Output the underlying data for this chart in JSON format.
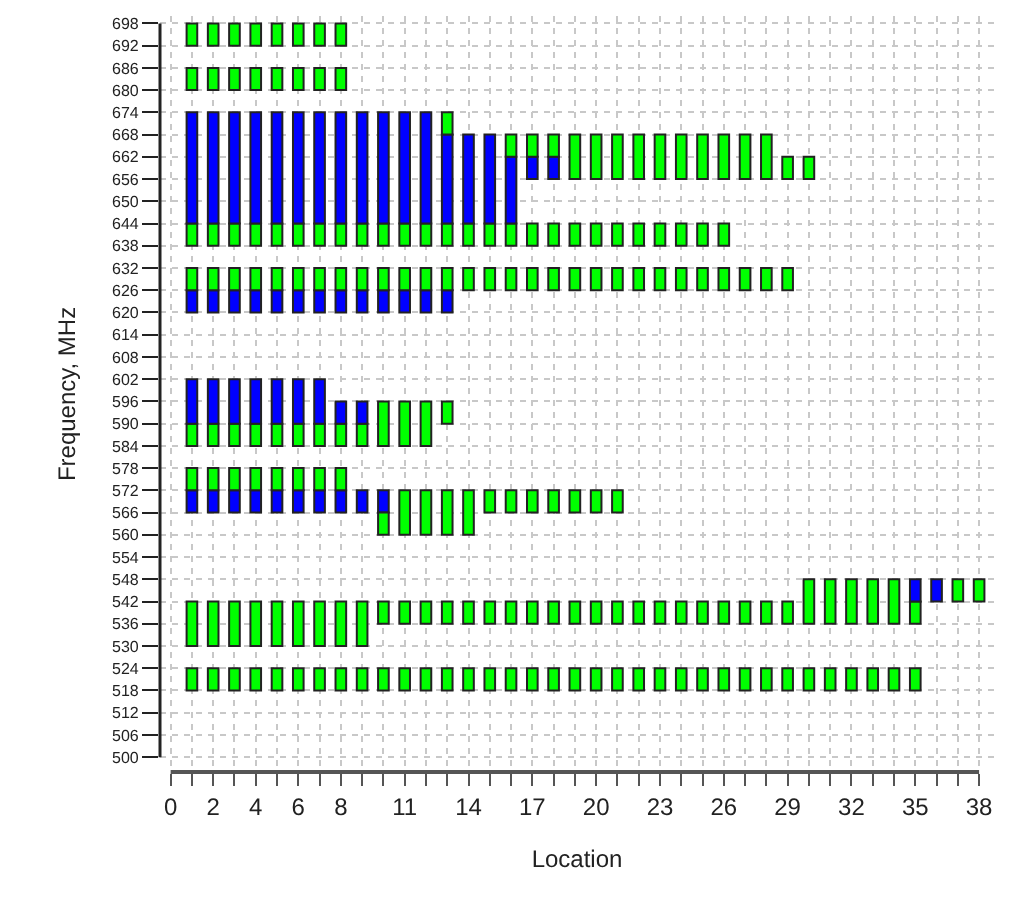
{
  "chart_data": {
    "type": "bar",
    "xlabel": "Location",
    "ylabel": "Frequency, MHz",
    "grid": true,
    "xlim": [
      -0.5,
      38.7
    ],
    "ylim": [
      496,
      700
    ],
    "xticks": [
      0,
      {
        "value": 1,
        "label": null
      },
      2,
      {
        "value": 3,
        "label": null
      },
      4,
      {
        "value": 5,
        "label": null
      },
      6,
      {
        "value": 7,
        "label": null
      },
      8,
      {
        "value": 9,
        "label": null
      },
      {
        "value": 10,
        "label": null
      },
      11,
      {
        "value": 12,
        "label": null
      },
      {
        "value": 13,
        "label": null
      },
      14,
      {
        "value": 15,
        "label": null
      },
      {
        "value": 16,
        "label": null
      },
      17,
      {
        "value": 18,
        "label": null
      },
      {
        "value": 19,
        "label": null
      },
      20,
      {
        "value": 21,
        "label": null
      },
      {
        "value": 22,
        "label": null
      },
      23,
      {
        "value": 24,
        "label": null
      },
      {
        "value": 25,
        "label": null
      },
      26,
      {
        "value": 27,
        "label": null
      },
      {
        "value": 28,
        "label": null
      },
      29,
      {
        "value": 30,
        "label": null
      },
      {
        "value": 31,
        "label": null
      },
      32,
      {
        "value": 33,
        "label": null
      },
      {
        "value": 34,
        "label": null
      },
      35,
      {
        "value": 36,
        "label": null
      },
      {
        "value": 37,
        "label": null
      },
      38
    ],
    "yticks": [
      500,
      506,
      512,
      518,
      524,
      530,
      536,
      542,
      548,
      554,
      560,
      566,
      572,
      578,
      584,
      590,
      596,
      602,
      608,
      614,
      620,
      626,
      632,
      638,
      644,
      650,
      656,
      662,
      668,
      674,
      680,
      686,
      692,
      698
    ],
    "series": [
      {
        "color": "#00ff00",
        "x": [
          1,
          2,
          3,
          4,
          5,
          6,
          7,
          8,
          9,
          10,
          11,
          12,
          13,
          14,
          15,
          16,
          17,
          18,
          19,
          20,
          21,
          22,
          23,
          24,
          25,
          26,
          27,
          28,
          29,
          30,
          31,
          32,
          33,
          34,
          35
        ],
        "base": [
          518,
          518,
          518,
          518,
          518,
          518,
          518,
          518,
          518,
          518,
          518,
          518,
          518,
          518,
          518,
          518,
          518,
          518,
          518,
          518,
          518,
          518,
          518,
          518,
          518,
          518,
          518,
          518,
          518,
          518,
          518,
          518,
          518,
          518,
          518
        ],
        "values": [
          6,
          6,
          6,
          6,
          6,
          6,
          6,
          6,
          6,
          6,
          6,
          6,
          6,
          6,
          6,
          6,
          6,
          6,
          6,
          6,
          6,
          6,
          6,
          6,
          6,
          6,
          6,
          6,
          6,
          6,
          6,
          6,
          6,
          6,
          6
        ]
      },
      {
        "color": "#00ff00",
        "x": [
          1,
          2,
          3,
          4,
          5,
          6,
          7,
          8,
          9,
          10,
          11,
          12,
          13,
          14,
          15,
          16,
          17,
          18,
          19,
          20,
          21,
          22,
          23,
          24,
          25,
          26,
          27,
          28,
          29,
          30,
          31,
          32,
          33,
          34,
          35,
          37,
          38
        ],
        "base": [
          530,
          530,
          530,
          530,
          530,
          530,
          530,
          530,
          530,
          536,
          536,
          536,
          536,
          536,
          536,
          536,
          536,
          536,
          536,
          536,
          536,
          536,
          536,
          536,
          536,
          536,
          536,
          536,
          536,
          536,
          536,
          536,
          536,
          536,
          536,
          542,
          542
        ],
        "values": [
          12,
          12,
          12,
          12,
          12,
          12,
          12,
          12,
          12,
          6,
          6,
          6,
          6,
          6,
          6,
          6,
          6,
          6,
          6,
          6,
          6,
          6,
          6,
          6,
          6,
          6,
          6,
          6,
          6,
          12,
          12,
          12,
          12,
          12,
          6,
          6,
          6
        ]
      },
      {
        "color": "#0000ff",
        "x": [
          1,
          2,
          3,
          4,
          5,
          6,
          7,
          8,
          9,
          10
        ],
        "base": [
          566,
          566,
          566,
          566,
          566,
          566,
          566,
          566,
          566,
          566
        ],
        "values": [
          6,
          6,
          6,
          6,
          6,
          6,
          6,
          6,
          6,
          6
        ]
      },
      {
        "color": "#00ff00",
        "x": [
          1,
          2,
          3,
          4,
          5,
          6,
          7,
          8
        ],
        "base": [
          572,
          572,
          572,
          572,
          572,
          572,
          572,
          572
        ],
        "values": [
          6,
          6,
          6,
          6,
          6,
          6,
          6,
          6
        ]
      },
      {
        "color": "#00ff00",
        "x": [
          1,
          2,
          3,
          4,
          5,
          6,
          7,
          8,
          9,
          10,
          11,
          12,
          13
        ],
        "base": [
          584,
          584,
          584,
          584,
          584,
          584,
          584,
          584,
          584,
          584,
          584,
          584,
          590
        ],
        "values": [
          6,
          6,
          6,
          6,
          6,
          6,
          6,
          6,
          6,
          12,
          12,
          12,
          6
        ]
      },
      {
        "color": "#0000ff",
        "x": [
          1,
          2,
          3,
          4,
          5,
          6,
          7,
          8,
          9
        ],
        "base": [
          590,
          590,
          590,
          590,
          590,
          590,
          590,
          590,
          590
        ],
        "values": [
          12,
          12,
          12,
          12,
          12,
          12,
          12,
          6,
          6
        ]
      },
      {
        "color": "#0000ff",
        "x": [
          1,
          2,
          3,
          4,
          5,
          6,
          7,
          8,
          9,
          10,
          11,
          12,
          13
        ],
        "base": [
          620,
          620,
          620,
          620,
          620,
          620,
          620,
          620,
          620,
          620,
          620,
          620,
          620
        ],
        "values": [
          6,
          6,
          6,
          6,
          6,
          6,
          6,
          6,
          6,
          6,
          6,
          6,
          6
        ]
      },
      {
        "color": "#00ff00",
        "x": [
          1,
          2,
          3,
          4,
          5,
          6,
          7,
          8,
          9,
          10,
          11,
          12,
          13,
          14,
          15,
          16,
          17,
          18,
          19,
          20,
          21,
          22,
          23,
          24,
          25,
          26,
          27,
          28,
          29
        ],
        "base": [
          626,
          626,
          626,
          626,
          626,
          626,
          626,
          626,
          626,
          626,
          626,
          626,
          626,
          626,
          626,
          626,
          626,
          626,
          626,
          626,
          626,
          626,
          626,
          626,
          626,
          626,
          626,
          626,
          626
        ],
        "values": [
          6,
          6,
          6,
          6,
          6,
          6,
          6,
          6,
          6,
          6,
          6,
          6,
          6,
          6,
          6,
          6,
          6,
          6,
          6,
          6,
          6,
          6,
          6,
          6,
          6,
          6,
          6,
          6,
          6
        ]
      },
      {
        "color": "#00ff00",
        "x": [
          1,
          2,
          3,
          4,
          5,
          6,
          7,
          8,
          9,
          10,
          11,
          12,
          13,
          14,
          15,
          16,
          17,
          18,
          19,
          20,
          21,
          22,
          23,
          24,
          25,
          26
        ],
        "base": [
          638,
          638,
          638,
          638,
          638,
          638,
          638,
          638,
          638,
          638,
          638,
          638,
          638,
          638,
          638,
          638,
          638,
          638,
          638,
          638,
          638,
          638,
          638,
          638,
          638,
          638
        ],
        "values": [
          6,
          6,
          6,
          6,
          6,
          6,
          6,
          6,
          6,
          6,
          6,
          6,
          6,
          6,
          6,
          6,
          6,
          6,
          6,
          6,
          6,
          6,
          6,
          6,
          6,
          6
        ]
      },
      {
        "color": "#0000ff",
        "x": [
          1,
          2,
          3,
          4,
          5,
          6,
          7,
          8,
          9,
          10,
          11,
          12,
          13,
          14,
          15,
          16,
          17,
          18
        ],
        "base": [
          644,
          644,
          644,
          644,
          644,
          644,
          644,
          644,
          644,
          644,
          644,
          644,
          644,
          644,
          644,
          644,
          656,
          656
        ],
        "values": [
          30,
          30,
          30,
          30,
          30,
          30,
          30,
          30,
          30,
          30,
          30,
          30,
          24,
          24,
          24,
          18,
          6,
          6
        ]
      },
      {
        "color": "#00ff00",
        "x": [
          1,
          2,
          3,
          4,
          5,
          6,
          7,
          8
        ],
        "base": [
          680,
          680,
          680,
          680,
          680,
          680,
          680,
          680
        ],
        "values": [
          6,
          6,
          6,
          6,
          6,
          6,
          6,
          6
        ]
      },
      {
        "color": "#00ff00",
        "x": [
          1,
          2,
          3,
          4,
          5,
          6,
          7,
          8
        ],
        "base": [
          692,
          692,
          692,
          692,
          692,
          692,
          692,
          692
        ],
        "values": [
          6,
          6,
          6,
          6,
          6,
          6,
          6,
          6
        ]
      },
      {
        "color": "#00ff00",
        "x": [
          10,
          11,
          12,
          13,
          14,
          15,
          16,
          17,
          18,
          19,
          20,
          21
        ],
        "base": [
          560,
          560,
          560,
          560,
          560,
          566,
          566,
          566,
          566,
          566,
          566,
          566
        ],
        "values": [
          6,
          12,
          12,
          12,
          12,
          6,
          6,
          6,
          6,
          6,
          6,
          6
        ]
      },
      {
        "color": "#00ff00",
        "x": [
          13
        ],
        "base": [
          668
        ],
        "values": [
          6
        ]
      },
      {
        "color": "#00ff00",
        "x": [
          16,
          17,
          18,
          19,
          20,
          21,
          22,
          23,
          24,
          25,
          26,
          27,
          28,
          29,
          30
        ],
        "base": [
          662,
          662,
          662,
          656,
          656,
          656,
          656,
          656,
          656,
          656,
          656,
          656,
          656,
          656,
          656
        ],
        "values": [
          6,
          6,
          6,
          12,
          12,
          12,
          12,
          12,
          12,
          12,
          12,
          12,
          12,
          6,
          6
        ]
      },
      {
        "color": "#0000ff",
        "x": [
          35,
          36
        ],
        "base": [
          542,
          542
        ],
        "values": [
          6,
          6
        ]
      }
    ]
  }
}
